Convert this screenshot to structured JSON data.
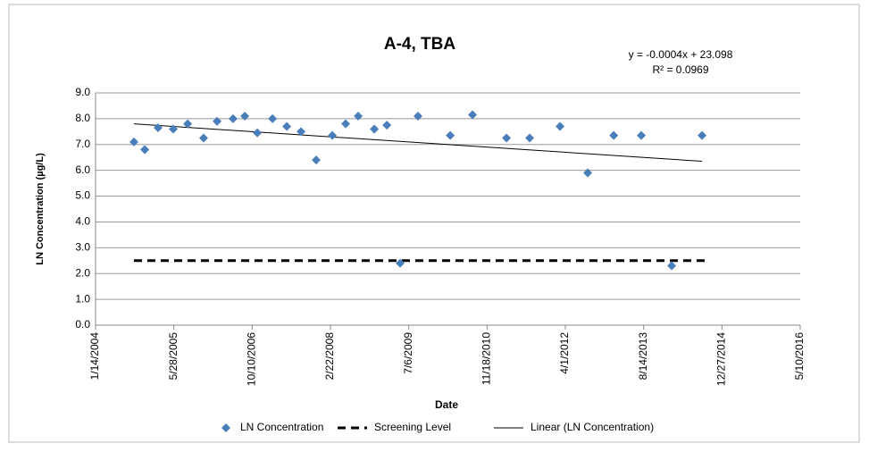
{
  "chart_data": {
    "type": "scatter",
    "title": "A-4, TBA",
    "x_label": "Date",
    "y_label": "LN Concentration (µg/L)",
    "annotations": [
      "y = -0.0004x + 23.098",
      "R² = 0.0969"
    ],
    "xlim": [
      38000,
      42500
    ],
    "xticks": [
      {
        "value": 38000,
        "label": "1/14/2004"
      },
      {
        "value": 38500,
        "label": "5/28/2005"
      },
      {
        "value": 39000,
        "label": "10/10/2006"
      },
      {
        "value": 39500,
        "label": "2/22/2008"
      },
      {
        "value": 40000,
        "label": "7/6/2009"
      },
      {
        "value": 40500,
        "label": "11/18/2010"
      },
      {
        "value": 41000,
        "label": "4/1/2012"
      },
      {
        "value": 41500,
        "label": "8/14/2013"
      },
      {
        "value": 42000,
        "label": "12/27/2014"
      },
      {
        "value": 42500,
        "label": "5/10/2016"
      }
    ],
    "ylim": [
      0,
      9
    ],
    "yticks": [
      {
        "value": 0,
        "label": "0.0"
      },
      {
        "value": 1,
        "label": "1.0"
      },
      {
        "value": 2,
        "label": "2.0"
      },
      {
        "value": 3,
        "label": "3.0"
      },
      {
        "value": 4,
        "label": "4.0"
      },
      {
        "value": 5,
        "label": "5.0"
      },
      {
        "value": 6,
        "label": "6.0"
      },
      {
        "value": 7,
        "label": "7.0"
      },
      {
        "value": 8,
        "label": "8.0"
      },
      {
        "value": 9,
        "label": "9.0"
      }
    ],
    "grid": true,
    "series": [
      {
        "name": "LN Concentration",
        "color": "#4a7ebb",
        "style": "marker",
        "x": [
          38245,
          38314,
          38399,
          38496,
          38588,
          38690,
          38776,
          38878,
          38953,
          39033,
          39130,
          39221,
          39312,
          39409,
          39512,
          39597,
          39677,
          39780,
          39860,
          39945,
          40059,
          40265,
          40407,
          40624,
          40772,
          40966,
          41143,
          41309,
          41485,
          41679,
          41873
        ],
        "values": [
          7.1,
          6.8,
          7.65,
          7.6,
          7.8,
          7.25,
          7.9,
          8.0,
          8.1,
          7.45,
          8.0,
          7.7,
          7.5,
          6.4,
          7.35,
          7.8,
          8.1,
          7.6,
          7.75,
          2.4,
          8.1,
          7.35,
          8.15,
          7.25,
          7.25,
          7.7,
          5.9,
          7.35,
          7.35,
          2.3,
          7.35
        ]
      },
      {
        "name": "Screening Level",
        "color": "#000000",
        "style": "dashed",
        "x": [
          38245,
          41900
        ],
        "values": [
          2.5,
          2.5
        ]
      },
      {
        "name": "Linear (LN Concentration)",
        "color": "#000000",
        "style": "solid",
        "x": [
          38245,
          41873
        ],
        "values": [
          7.8,
          6.35
        ]
      }
    ]
  }
}
